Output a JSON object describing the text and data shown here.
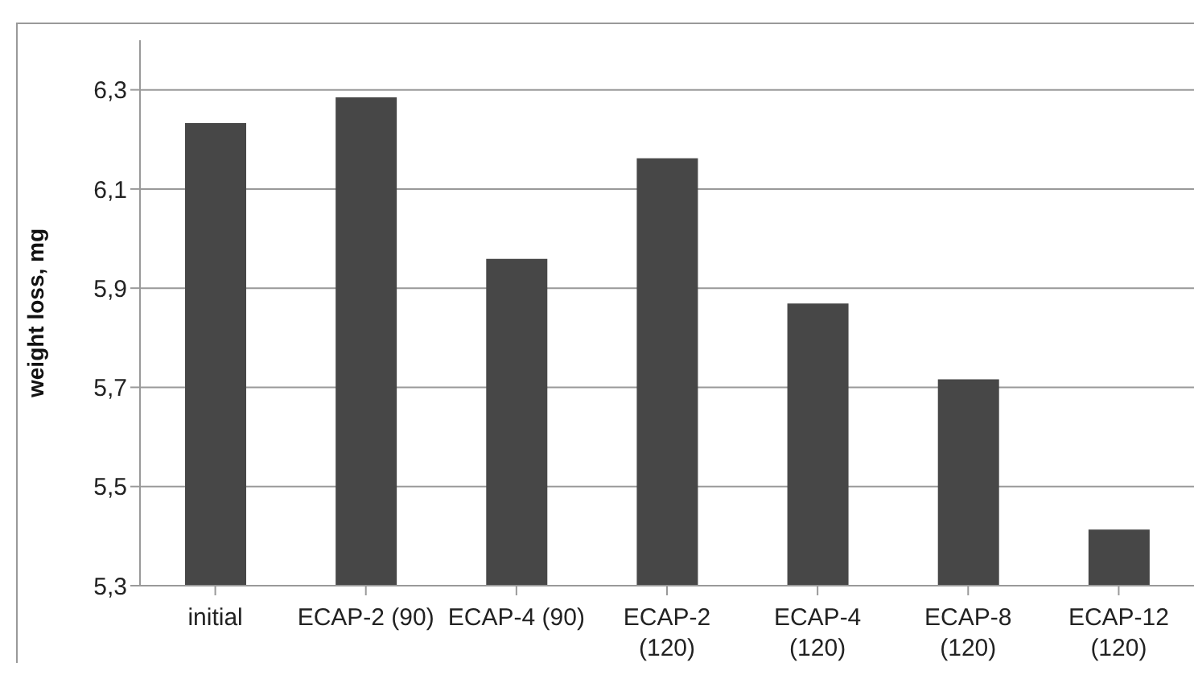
{
  "chart_data": {
    "type": "bar",
    "ylabel": "weight loss, mg",
    "categories": [
      "initial",
      "ECAP-2 (90)",
      "ECAP-4 (90)",
      "ECAP-2 (120)",
      "ECAP-4 (120)",
      "ECAP-8 (120)",
      "ECAP-12 (120)"
    ],
    "values": [
      6.233,
      6.285,
      5.959,
      6.162,
      5.869,
      5.716,
      5.413
    ],
    "color": "#474747",
    "ylim": [
      5.3,
      6.4
    ],
    "yticks": [
      {
        "value": 5.3,
        "label": "5,3"
      },
      {
        "value": 5.5,
        "label": "5,5"
      },
      {
        "value": 5.7,
        "label": "5,7"
      },
      {
        "value": 5.9,
        "label": "5,9"
      },
      {
        "value": 6.1,
        "label": "6,1"
      },
      {
        "value": 6.3,
        "label": "6,3"
      }
    ],
    "grid": "y",
    "legend": false
  }
}
